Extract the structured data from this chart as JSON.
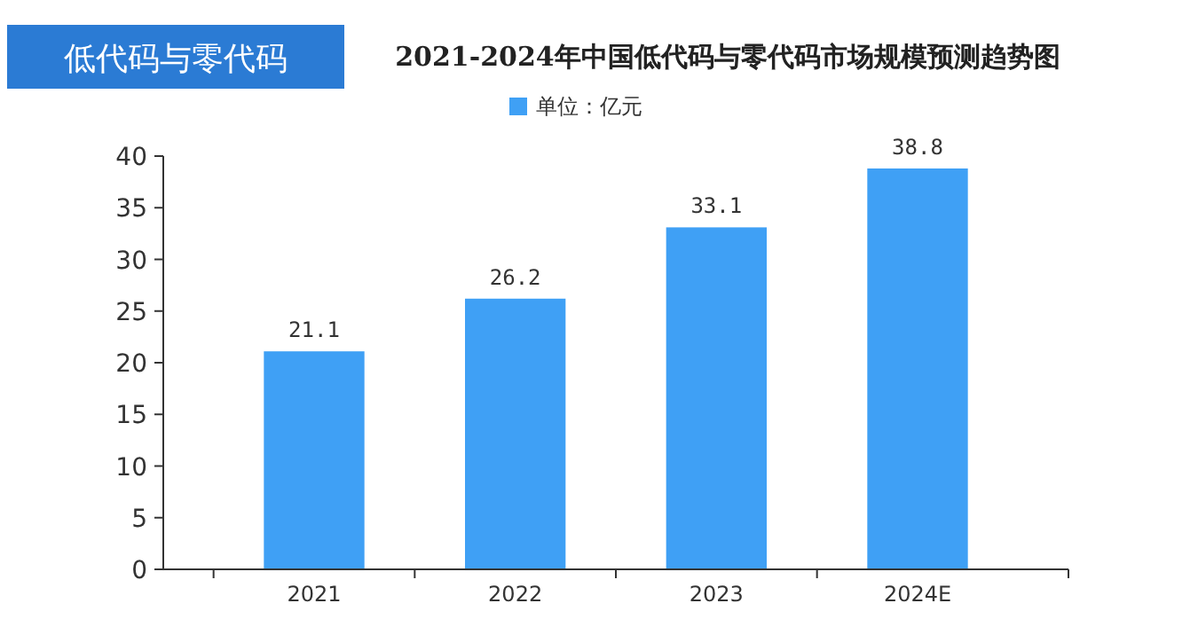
{
  "chart_data": {
    "type": "bar",
    "title": "2021-2024年中国低代码与零代码市场规模预测趋势图",
    "annotations": [
      "低代码与零代码"
    ],
    "categories": [
      "2021",
      "2022",
      "2023",
      "2024E"
    ],
    "series": [
      {
        "name": "单位：亿元",
        "color": "#3fa0f5",
        "values": [
          21.1,
          26.2,
          33.1,
          38.8
        ]
      }
    ],
    "ylim": [
      0,
      40
    ],
    "yticks": [
      0,
      5,
      10,
      15,
      20,
      25,
      30,
      35,
      40
    ],
    "grid": false,
    "legend": "top",
    "data_labels": true
  }
}
